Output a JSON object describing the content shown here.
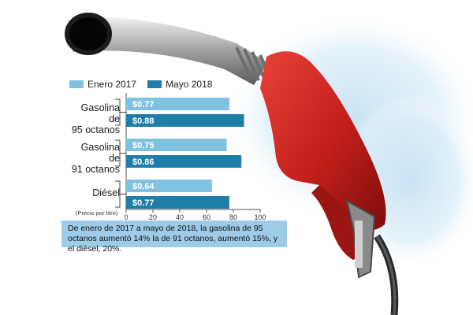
{
  "legend": {
    "items": [
      {
        "label": "Enero 2017",
        "color": "#7fc2e0"
      },
      {
        "label": "Mayo 2018",
        "color": "#1f7ea8"
      }
    ]
  },
  "categories_display": [
    {
      "line1": "Gasolina de",
      "line2": "95 octanos"
    },
    {
      "line1": "Gasolina de",
      "line2": "91 octanos"
    },
    {
      "line1": "Diésel",
      "line2": ""
    }
  ],
  "axis": {
    "unit_note": "(Precio por litro)"
  },
  "caption": "De enero de 2017 a mayo de 2018, la gasolina de 95 octanos aumentó 14% la de 91 octanos, aumentó 15%, y el diésel, 20%.",
  "chart_data": {
    "type": "bar",
    "orientation": "horizontal",
    "categories": [
      "Gasolina de 95 octanos",
      "Gasolina de 91 octanos",
      "Diésel"
    ],
    "series": [
      {
        "name": "Enero 2017",
        "values": [
          0.77,
          0.75,
          0.64
        ],
        "labels": [
          "$0.77",
          "$0.75",
          "$0.64"
        ],
        "color": "#7fc2e0"
      },
      {
        "name": "Mayo 2018",
        "values": [
          0.88,
          0.86,
          0.77
        ],
        "labels": [
          "$0.88",
          "$0.86",
          "$0.77"
        ],
        "color": "#1f7ea8"
      }
    ],
    "xticks": [
      "0",
      "20",
      "40",
      "60",
      "80",
      "100"
    ],
    "xlim": [
      0,
      1.0
    ],
    "xlabel": "(Precio por litro)",
    "legend": "top-left",
    "grid": false
  }
}
